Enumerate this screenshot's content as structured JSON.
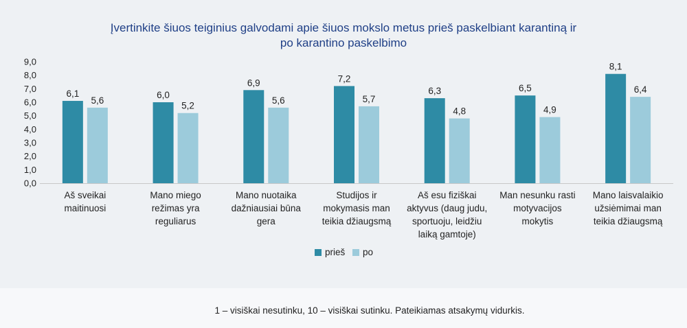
{
  "chart_data": {
    "type": "bar",
    "title_lines": [
      "Įvertinkite šiuos teiginius galvodami apie šiuos mokslo metus prieš paskelbiant karantiną ir",
      "po karantino paskelbimo"
    ],
    "categories": [
      [
        "Aš sveikai",
        "maitinuosi"
      ],
      [
        "Mano miego",
        "režimas yra",
        "reguliarus"
      ],
      [
        "Mano nuotaika",
        "dažniausiai būna",
        "gera"
      ],
      [
        "Studijos ir",
        "mokymasis man",
        "teikia džiaugsmą"
      ],
      [
        "Aš esu fiziškai",
        "aktyvus (daug judu,",
        "sportuoju, leidžiu",
        "laiką gamtoje)"
      ],
      [
        "Man nesunku rasti",
        "motyvacijos",
        "mokytis"
      ],
      [
        "Mano laisvalaikio",
        "užsiėmimai man",
        "teikia džiaugsmą"
      ]
    ],
    "series": [
      {
        "name": "prieš",
        "color": "#2e8ba5",
        "values": [
          6.1,
          6.0,
          6.9,
          7.2,
          6.3,
          6.5,
          8.1
        ],
        "labels": [
          "6,1",
          "6,0",
          "6,9",
          "7,2",
          "6,3",
          "6,5",
          "8,1"
        ]
      },
      {
        "name": "po",
        "color": "#9ccbdb",
        "values": [
          5.6,
          5.2,
          5.6,
          5.7,
          4.8,
          4.9,
          6.4
        ],
        "labels": [
          "5,6",
          "5,2",
          "5,6",
          "5,7",
          "4,8",
          "4,9",
          "6,4"
        ]
      }
    ],
    "ylim": [
      0,
      9
    ],
    "y_ticks": [
      "0,0",
      "1,0",
      "2,0",
      "3,0",
      "4,0",
      "5,0",
      "6,0",
      "7,0",
      "8,0",
      "9,0"
    ],
    "grid": false,
    "legend_position": "bottom-center"
  },
  "footnote": "1 – visiškai nesutinku, 10 – visiškai sutinku. Pateikiamas atsakymų vidurkis."
}
